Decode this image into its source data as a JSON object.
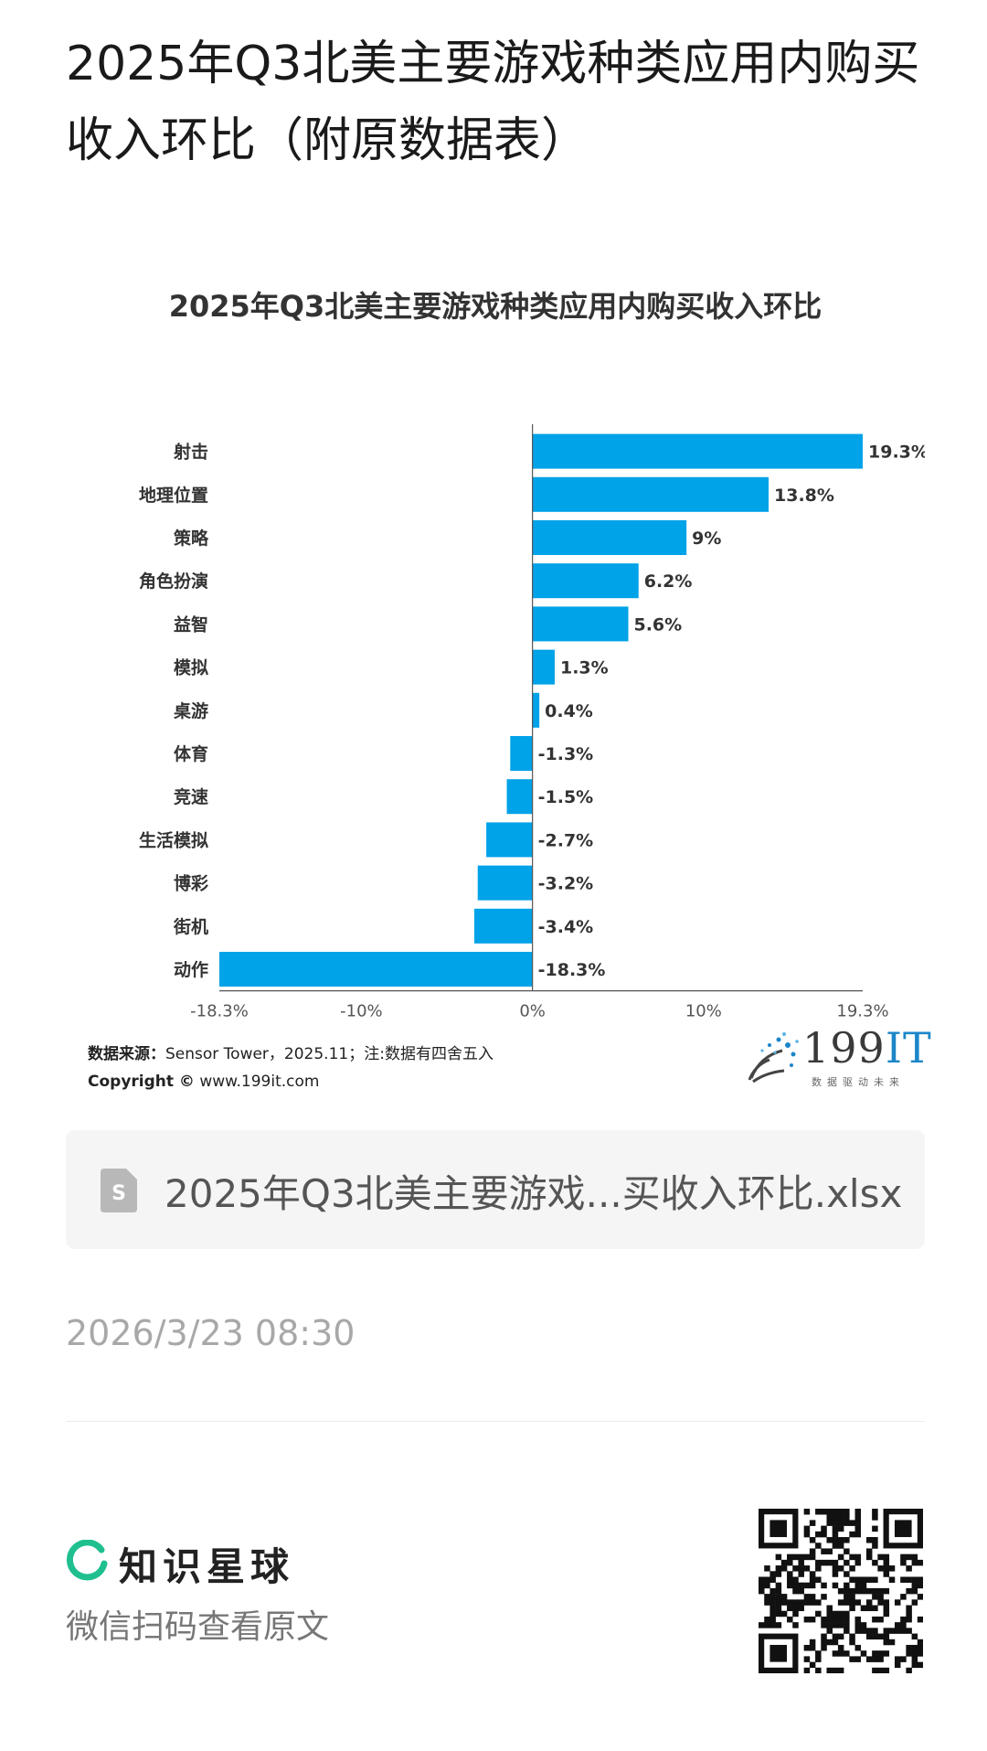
{
  "post": {
    "title": "2025年Q3北美主要游戏种类应用内购买收入环比（附原数据表）",
    "file_name": "2025年Q3北美主要游戏...买收入环比.xlsx",
    "timestamp": "2026/3/23 08:30"
  },
  "source": {
    "label": "数据来源：",
    "text": "Sensor Tower，2025.11；注:数据有四舍五入",
    "copyright_label": "Copyright ©",
    "copyright_text": "www.199it.com"
  },
  "logo": {
    "main": "199",
    "accent": "IT",
    "sub": "数据驱动未来"
  },
  "footer": {
    "brand": "知识星球",
    "scan_text": "微信扫码查看原文"
  },
  "colors": {
    "bar": "#00a2e8",
    "brand_green": "#1fbf8f"
  },
  "chart_data": {
    "type": "bar",
    "orientation": "horizontal",
    "title": "2025年Q3北美主要游戏种类应用内购买收入环比",
    "categories": [
      "射击",
      "地理位置",
      "策略",
      "角色扮演",
      "益智",
      "模拟",
      "桌游",
      "体育",
      "竞速",
      "生活模拟",
      "博彩",
      "街机",
      "动作"
    ],
    "values": [
      19.3,
      13.8,
      9,
      6.2,
      5.6,
      1.3,
      0.4,
      -1.3,
      -1.5,
      -2.7,
      -3.2,
      -3.4,
      -18.3
    ],
    "value_labels": [
      "19.3%",
      "13.8%",
      "9%",
      "6.2%",
      "5.6%",
      "1.3%",
      "0.4%",
      "-1.3%",
      "-1.5%",
      "-2.7%",
      "-3.2%",
      "-3.4%",
      "-18.3%"
    ],
    "xlim": [
      -18.3,
      19.3
    ],
    "xticks": [
      -18.3,
      -10,
      0,
      10,
      19.3
    ],
    "xtick_labels": [
      "-18.3%",
      "-10%",
      "0%",
      "10%",
      "19.3%"
    ],
    "xlabel": "",
    "ylabel": "",
    "grid": false,
    "legend": "none"
  }
}
